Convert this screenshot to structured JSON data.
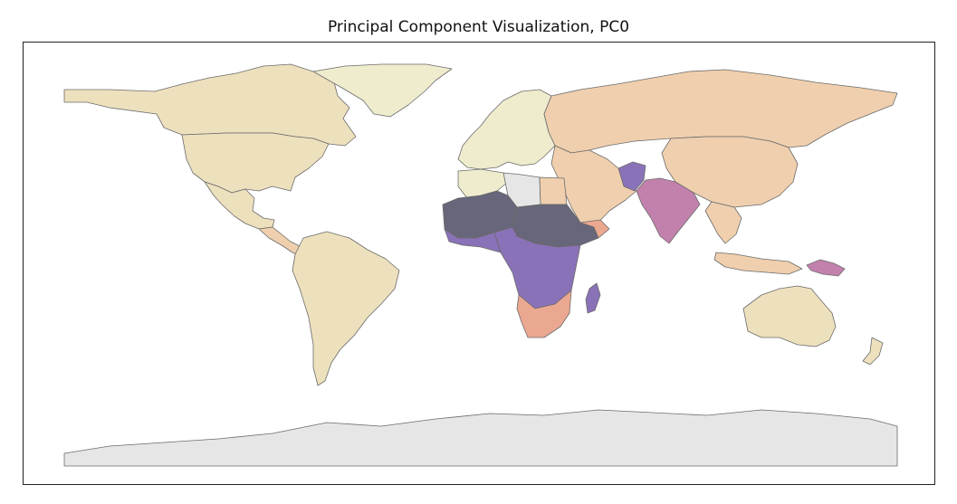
{
  "title": "Principal Component Visualization, PC0",
  "colors": {
    "no_data": "#e6e6e6",
    "low_yellow": "#efebcd",
    "tan": "#ede0bd",
    "peach": "#efcfae",
    "salmon": "#eba890",
    "magenta": "#c281ad",
    "purple": "#8a72b8",
    "dark": "#67667a"
  },
  "colormap": "magma_r",
  "regions": [
    {
      "name": "Canada",
      "color": "tan"
    },
    {
      "name": "United States",
      "color": "tan"
    },
    {
      "name": "Mexico",
      "color": "tan"
    },
    {
      "name": "Central America",
      "color": "peach"
    },
    {
      "name": "South America",
      "color": "tan"
    },
    {
      "name": "Greenland",
      "color": "low_yellow"
    },
    {
      "name": "Europe",
      "color": "low_yellow"
    },
    {
      "name": "Russia",
      "color": "peach"
    },
    {
      "name": "China",
      "color": "peach"
    },
    {
      "name": "Middle East",
      "color": "peach"
    },
    {
      "name": "India",
      "color": "magenta"
    },
    {
      "name": "Afghanistan",
      "color": "purple"
    },
    {
      "name": "Southeast Asia",
      "color": "peach"
    },
    {
      "name": "Australia",
      "color": "tan"
    },
    {
      "name": "Antarctica",
      "color": "no_data"
    },
    {
      "name": "Libya",
      "color": "no_data"
    },
    {
      "name": "Sahel",
      "color": "dark"
    },
    {
      "name": "Central Africa",
      "color": "purple"
    },
    {
      "name": "Southern Africa",
      "color": "salmon"
    },
    {
      "name": "Madagascar",
      "color": "purple"
    },
    {
      "name": "Papua New Guinea",
      "color": "magenta"
    }
  ]
}
